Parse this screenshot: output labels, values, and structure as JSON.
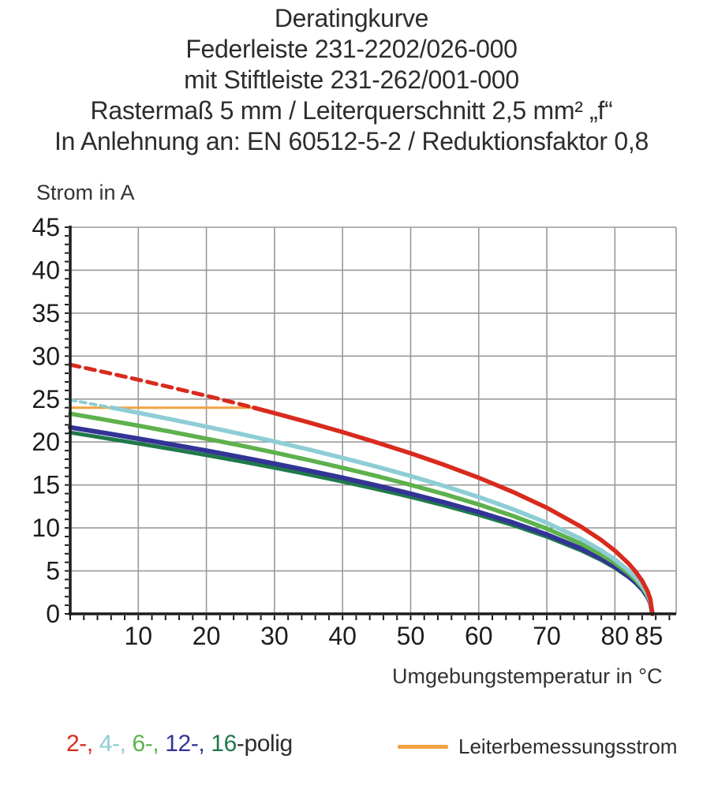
{
  "title_lines": [
    "Deratingkurve",
    "Federleiste 231-2202/026-000",
    "mit Stiftleiste 231-262/001-000",
    "Rastermaß 5 mm / Leiterquerschnitt 2,5 mm² „f“",
    "In Anlehnung an: EN 60512-5-2 / Reduktionsfaktor 0,8"
  ],
  "colors": {
    "red": "#d92a1e",
    "cyan": "#8ecdd5",
    "green": "#5eb14d",
    "navy": "#333496",
    "darkgreen": "#20794a",
    "orange": "#f0a240",
    "grid": "#9a9a9a",
    "axis": "#1c1c1c",
    "text": "#2d2d2d"
  },
  "chart_data": {
    "type": "line",
    "title": "Deratingkurve",
    "ylabel": "Strom in A",
    "xlabel": "Umgebungstemperatur in °C",
    "xlim": [
      0,
      89
    ],
    "ylim": [
      0,
      45
    ],
    "x_ticks": [
      10,
      20,
      30,
      40,
      50,
      60,
      70,
      80,
      85
    ],
    "y_ticks": [
      0,
      5,
      10,
      15,
      20,
      25,
      30,
      35,
      40,
      45
    ],
    "grid": true,
    "legend_position": "bottom",
    "series": [
      {
        "name": "leiterbemessungsstrom",
        "color": "orange",
        "style": "solid",
        "width": 3,
        "points": [
          [
            0,
            24
          ],
          [
            27.3,
            24
          ]
        ]
      },
      {
        "name": "16-polig",
        "color": "darkgreen",
        "style": "solid",
        "width": 5,
        "points": [
          [
            0,
            21.1
          ],
          [
            5,
            20.47
          ],
          [
            10,
            19.83
          ],
          [
            15,
            19.16
          ],
          [
            20,
            18.47
          ],
          [
            25,
            17.75
          ],
          [
            30,
            17.0
          ],
          [
            35,
            16.22
          ],
          [
            40,
            15.39
          ],
          [
            45,
            14.52
          ],
          [
            50,
            13.6
          ],
          [
            55,
            12.6
          ],
          [
            60,
            11.52
          ],
          [
            65,
            10.33
          ],
          [
            70,
            8.98
          ],
          [
            75,
            7.39
          ],
          [
            78,
            6.25
          ],
          [
            80,
            5.35
          ],
          [
            82,
            4.27
          ],
          [
            83,
            3.61
          ],
          [
            84,
            2.79
          ],
          [
            84.8,
            1.91
          ],
          [
            85.2,
            1.25
          ],
          [
            85.5,
            0
          ]
        ]
      },
      {
        "name": "12-polig",
        "color": "navy",
        "style": "solid",
        "width": 6,
        "points": [
          [
            0,
            21.7
          ],
          [
            5,
            21.06
          ],
          [
            10,
            20.39
          ],
          [
            15,
            19.7
          ],
          [
            20,
            18.99
          ],
          [
            25,
            18.25
          ],
          [
            30,
            17.48
          ],
          [
            35,
            16.68
          ],
          [
            40,
            15.83
          ],
          [
            45,
            14.94
          ],
          [
            50,
            13.98
          ],
          [
            55,
            12.96
          ],
          [
            60,
            11.85
          ],
          [
            65,
            10.63
          ],
          [
            70,
            9.24
          ],
          [
            75,
            7.6
          ],
          [
            78,
            6.43
          ],
          [
            80,
            5.5
          ],
          [
            82,
            4.39
          ],
          [
            83,
            3.71
          ],
          [
            84,
            2.87
          ],
          [
            84.8,
            1.96
          ],
          [
            85.2,
            1.29
          ],
          [
            85.5,
            0
          ]
        ]
      },
      {
        "name": "6-polig",
        "color": "green",
        "style": "solid",
        "width": 5.5,
        "points": [
          [
            0,
            23.3
          ],
          [
            5,
            22.61
          ],
          [
            10,
            21.9
          ],
          [
            15,
            21.16
          ],
          [
            20,
            20.39
          ],
          [
            25,
            19.6
          ],
          [
            30,
            18.77
          ],
          [
            35,
            17.91
          ],
          [
            40,
            17.0
          ],
          [
            45,
            16.04
          ],
          [
            50,
            15.01
          ],
          [
            55,
            13.92
          ],
          [
            60,
            12.73
          ],
          [
            65,
            11.41
          ],
          [
            70,
            9.92
          ],
          [
            75,
            8.17
          ],
          [
            78,
            6.9
          ],
          [
            80,
            5.91
          ],
          [
            82,
            4.71
          ],
          [
            83,
            3.99
          ],
          [
            84,
            3.09
          ],
          [
            84.8,
            2.11
          ],
          [
            85.2,
            1.38
          ],
          [
            85.5,
            0
          ]
        ]
      },
      {
        "name": "4-polig",
        "color": "cyan",
        "style": "solid",
        "width": 5.5,
        "points": [
          [
            6,
            24.01
          ],
          [
            10,
            23.4
          ],
          [
            15,
            22.61
          ],
          [
            20,
            21.79
          ],
          [
            25,
            20.95
          ],
          [
            30,
            20.06
          ],
          [
            35,
            19.14
          ],
          [
            40,
            18.16
          ],
          [
            45,
            17.14
          ],
          [
            50,
            16.04
          ],
          [
            55,
            14.87
          ],
          [
            60,
            13.6
          ],
          [
            65,
            12.19
          ],
          [
            70,
            10.6
          ],
          [
            75,
            8.73
          ],
          [
            78,
            7.37
          ],
          [
            80,
            6.32
          ],
          [
            82,
            5.04
          ],
          [
            83,
            4.26
          ],
          [
            84,
            3.3
          ],
          [
            84.8,
            2.25
          ],
          [
            85.2,
            1.47
          ],
          [
            85.5,
            0
          ]
        ]
      },
      {
        "name": "4-polig-above-rated",
        "color": "cyan",
        "style": "dashed",
        "dash": "7 6",
        "width": 4,
        "points": [
          [
            0,
            24.9
          ],
          [
            3,
            24.46
          ],
          [
            6,
            24.01
          ]
        ]
      },
      {
        "name": "2-polig",
        "color": "red",
        "style": "solid",
        "width": 5.5,
        "points": [
          [
            27,
            23.99
          ],
          [
            30,
            23.36
          ],
          [
            35,
            22.29
          ],
          [
            40,
            21.16
          ],
          [
            45,
            19.96
          ],
          [
            50,
            18.69
          ],
          [
            55,
            17.32
          ],
          [
            60,
            15.84
          ],
          [
            65,
            14.2
          ],
          [
            70,
            12.35
          ],
          [
            75,
            10.16
          ],
          [
            78,
            8.59
          ],
          [
            80,
            7.36
          ],
          [
            82,
            5.87
          ],
          [
            83,
            4.96
          ],
          [
            84,
            3.84
          ],
          [
            84.8,
            2.62
          ],
          [
            85.2,
            1.72
          ],
          [
            85.5,
            0
          ]
        ]
      },
      {
        "name": "2-polig-above-rated",
        "color": "red",
        "style": "dashed",
        "dash": "12 8",
        "width": 5,
        "points": [
          [
            0,
            29.0
          ],
          [
            5,
            28.14
          ],
          [
            10,
            27.25
          ],
          [
            15,
            26.33
          ],
          [
            20,
            25.38
          ],
          [
            25,
            24.39
          ],
          [
            27,
            23.99
          ]
        ]
      }
    ]
  },
  "legend_polig": {
    "parts": [
      {
        "text": "2-, ",
        "color": "red"
      },
      {
        "text": "4-, ",
        "color": "cyan"
      },
      {
        "text": "6-, ",
        "color": "green"
      },
      {
        "text": "12-, ",
        "color": "navy"
      },
      {
        "text": "16",
        "color": "darkgreen"
      },
      {
        "text": "-polig",
        "color": "text"
      }
    ]
  },
  "legend_rated": {
    "label": "Leiterbemessungsstrom",
    "swatch_color": "orange"
  }
}
